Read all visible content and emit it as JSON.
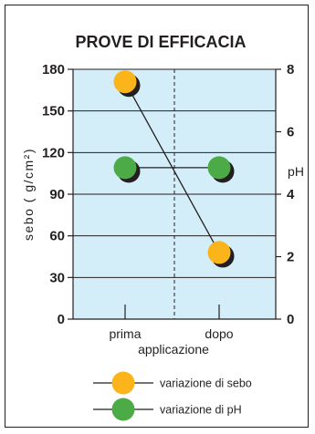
{
  "chart_data": {
    "type": "line",
    "title": "PROVE DI EFFICACIA",
    "xlabel": "applicazione",
    "categories": [
      "prima",
      "dopo"
    ],
    "y_left": {
      "label": "sebo ( g/cm²)",
      "ylim": [
        0,
        180
      ],
      "ticks": [
        "0",
        "30",
        "60",
        "90",
        "120",
        "150",
        "180"
      ]
    },
    "y_right": {
      "label": "pH",
      "ylim": [
        0,
        8
      ],
      "ticks": [
        "0",
        "2",
        "4",
        "6",
        "8"
      ]
    },
    "series": [
      {
        "name": "variazione di sebo",
        "axis": "left",
        "values": [
          171,
          48
        ],
        "color": "#fbb41a"
      },
      {
        "name": "variazione di pH",
        "axis": "right",
        "values": [
          4.85,
          4.85
        ],
        "color": "#4dab47"
      }
    ],
    "grid": true,
    "legend_position": "bottom",
    "colors": {
      "plot_background": "#d4eef9",
      "frame": "#231f20",
      "shadow": "#231f20"
    }
  }
}
